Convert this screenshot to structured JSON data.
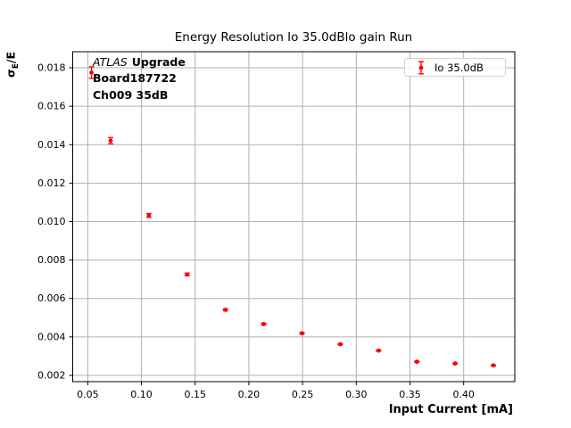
{
  "chart_data": {
    "type": "scatter",
    "title": "Energy Resolution Io 35.0dBlo gain Run",
    "xlabel": "Input Current [mA]",
    "ylabel": "σE/E",
    "ylabel_parts": {
      "sigma": "σ",
      "subscript": "E",
      "rest": "/E"
    },
    "xlim": [
      0.036,
      0.4476
    ],
    "ylim": [
      0.001675,
      0.018835
    ],
    "grid": true,
    "legend_position": "upper right",
    "xticks": {
      "values": [
        0.05,
        0.1,
        0.15,
        0.2,
        0.25,
        0.3,
        0.35,
        0.4
      ],
      "labels": [
        "0.05",
        "0.10",
        "0.15",
        "0.20",
        "0.25",
        "0.30",
        "0.35",
        "0.40"
      ]
    },
    "yticks": {
      "values": [
        0.002,
        0.004,
        0.006,
        0.008,
        0.01,
        0.012,
        0.014,
        0.016,
        0.018
      ],
      "labels": [
        "0.002",
        "0.004",
        "0.006",
        "0.008",
        "0.010",
        "0.012",
        "0.014",
        "0.016",
        "0.018"
      ]
    },
    "series": [
      {
        "name": "Io 35.0dB",
        "color": "#ff0000",
        "marker": "circle",
        "x": [
          0.0535,
          0.0713,
          0.1069,
          0.1426,
          0.1782,
          0.2138,
          0.2495,
          0.2851,
          0.3208,
          0.3564,
          0.392,
          0.4277
        ],
        "y": [
          0.01775,
          0.01421,
          0.01032,
          0.00725,
          0.00541,
          0.00467,
          0.00419,
          0.00362,
          0.00329,
          0.00271,
          0.00262,
          0.00252
        ],
        "yerr": [
          0.0003,
          0.00016,
          0.0001,
          7e-05,
          5e-05,
          4e-05,
          4e-05,
          3e-05,
          3e-05,
          3e-05,
          2e-05,
          2e-05
        ]
      }
    ]
  },
  "annotation": {
    "line1_italic": "ATLAS",
    "line1_bold": "Upgrade",
    "line2": "Board187722",
    "line3": "Ch009 35dB"
  },
  "colors": {
    "grid": "#b0b0b0",
    "axes": "#000000",
    "marker": "#ff0000",
    "legend_border": "#d2d2d2",
    "background": "#ffffff"
  }
}
